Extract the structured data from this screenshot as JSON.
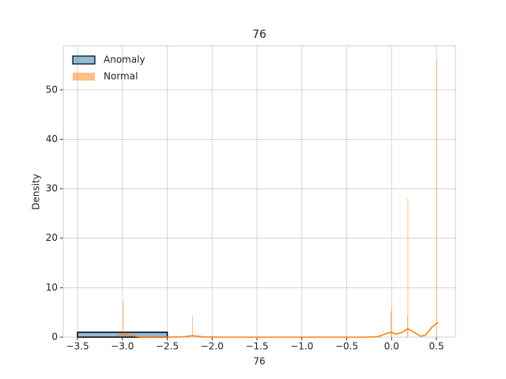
{
  "chart_data": {
    "type": "histogram",
    "title": "76",
    "x_label": "76",
    "y_label": "Density",
    "xlim": [
      -3.659,
      0.711
    ],
    "ylim": [
      0,
      58.9
    ],
    "xticks": [
      {
        "value": -3.5,
        "label": "−3.5"
      },
      {
        "value": -3.0,
        "label": "−3.0"
      },
      {
        "value": -2.5,
        "label": "−2.5"
      },
      {
        "value": -2.0,
        "label": "−2.0"
      },
      {
        "value": -1.5,
        "label": "−1.5"
      },
      {
        "value": -1.0,
        "label": "−1.0"
      },
      {
        "value": -0.5,
        "label": "−0.5"
      },
      {
        "value": 0.0,
        "label": "0.0"
      },
      0.5
    ],
    "yticks": [
      0,
      10,
      20,
      30,
      40,
      50
    ],
    "grid": true,
    "legend": "upper left",
    "series": [
      {
        "name": "Anomaly",
        "color": "#1f77b4",
        "edgecolor": "#000000",
        "bins": [
          -3.5,
          -2.5
        ],
        "values": [
          1
        ]
      },
      {
        "name": "Normal",
        "color": "#ff7f0e",
        "width": 0.006,
        "x": [
          -2.99,
          -2.22,
          -0.01,
          0.0,
          0.175,
          0.18,
          0.5
        ],
        "values": [
          7.4,
          4.2,
          5.0,
          6.1,
          4.3,
          28.0,
          56.2
        ],
        "kde_x": [
          -3.05,
          -3.0,
          -2.9,
          -2.8,
          -2.5,
          -2.3,
          -2.22,
          -2.1,
          -1.9,
          -0.3,
          -0.15,
          -0.05,
          0.0,
          0.05,
          0.12,
          0.18,
          0.25,
          0.32,
          0.38,
          0.44,
          0.5,
          0.52
        ],
        "kde_y": [
          0.3,
          0.6,
          0.3,
          0.05,
          0,
          0.1,
          0.3,
          0.05,
          0,
          0,
          0.1,
          0.8,
          1.0,
          0.6,
          1.0,
          1.7,
          1.0,
          0.2,
          0.4,
          1.8,
          2.8,
          2.9
        ]
      }
    ]
  }
}
